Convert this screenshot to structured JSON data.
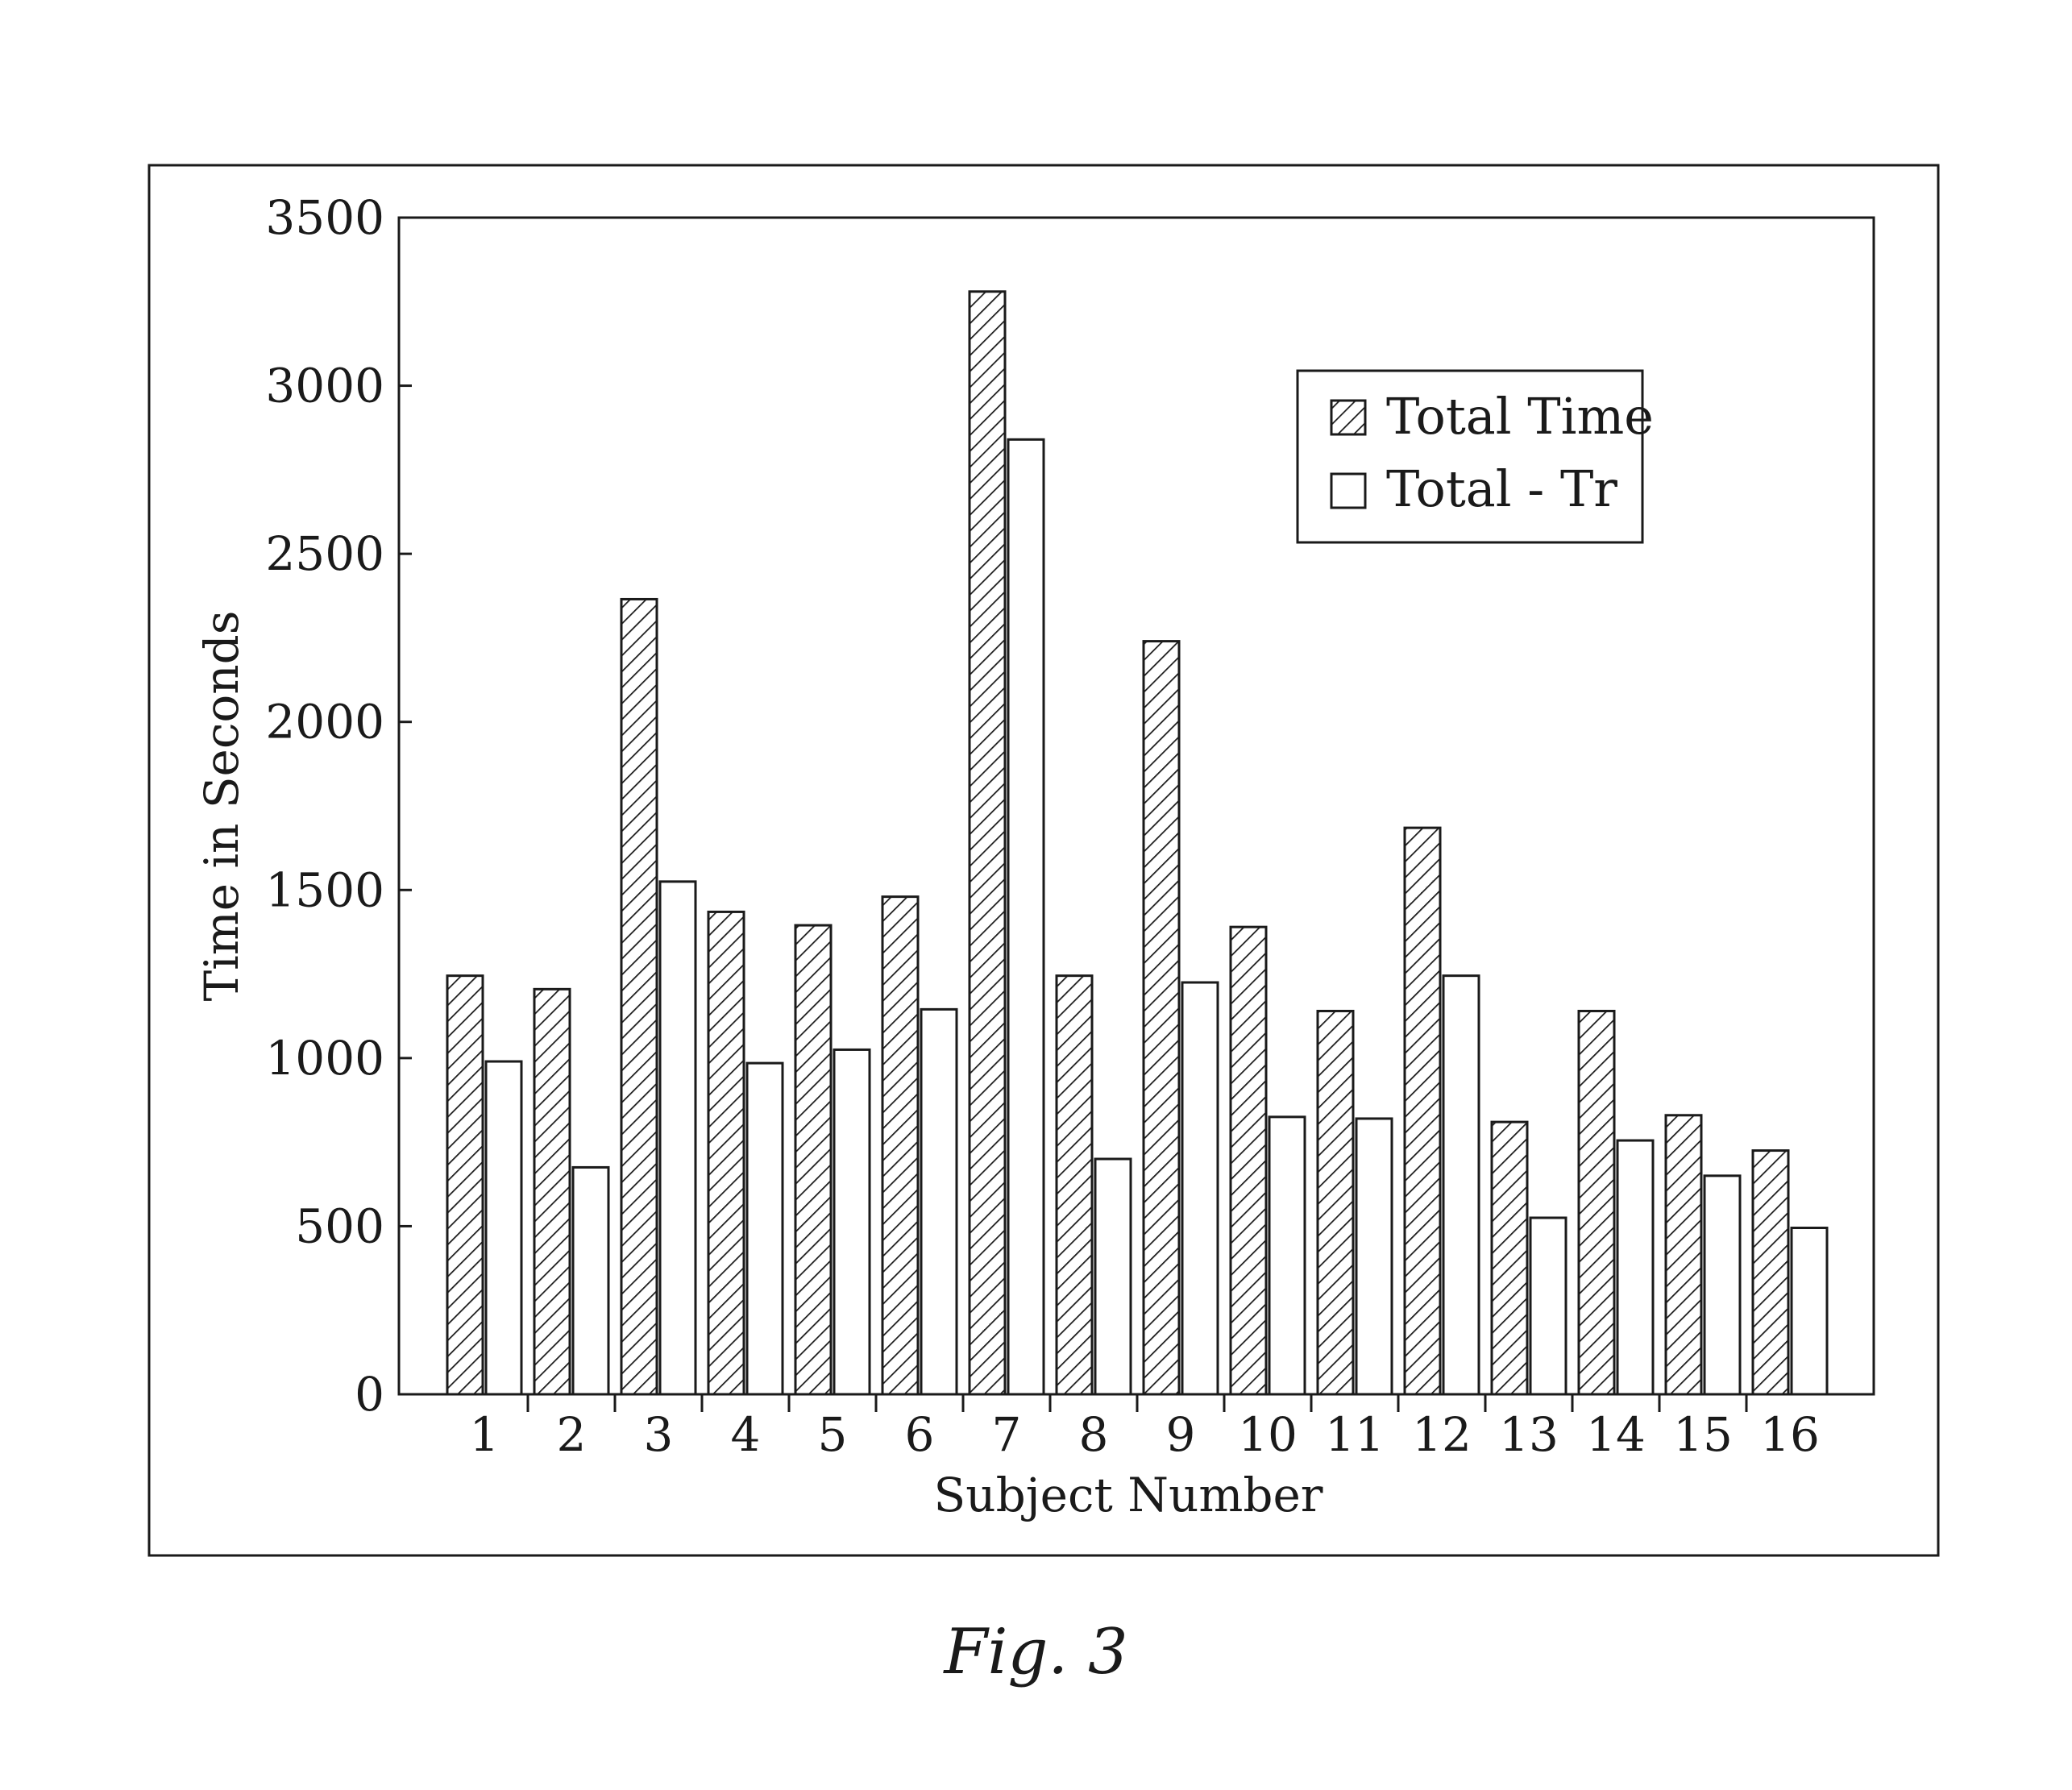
{
  "caption": "Fig. 3",
  "chart_data": {
    "type": "bar",
    "title": "",
    "xlabel": "Subject Number",
    "ylabel": "Time in Seconds",
    "ylim": [
      0,
      3500
    ],
    "yticks": [
      0,
      500,
      1000,
      1500,
      2000,
      2500,
      3000,
      3500
    ],
    "categories": [
      "1",
      "2",
      "3",
      "4",
      "5",
      "6",
      "7",
      "8",
      "9",
      "10",
      "11",
      "12",
      "13",
      "14",
      "15",
      "16"
    ],
    "series": [
      {
        "name": "Total Time",
        "pattern": "hatched",
        "values": [
          1245,
          1205,
          2365,
          1435,
          1395,
          1480,
          3280,
          1245,
          2240,
          1390,
          1140,
          1685,
          810,
          1140,
          830,
          725
        ]
      },
      {
        "name": "Total - Tr",
        "pattern": "open",
        "values": [
          990,
          675,
          1525,
          985,
          1025,
          1145,
          2840,
          700,
          1225,
          825,
          820,
          1245,
          525,
          755,
          650,
          495
        ]
      }
    ],
    "legend_position": "top-right",
    "grid": false,
    "colors": {
      "stroke": "#1a1a1a",
      "fill_open": "#ffffff"
    }
  }
}
